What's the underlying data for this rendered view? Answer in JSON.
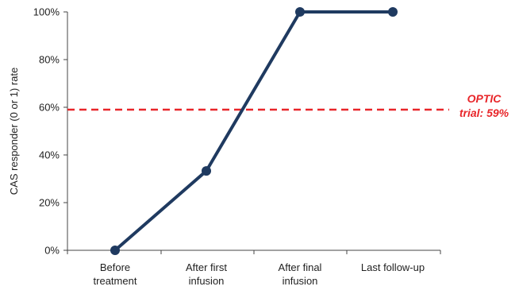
{
  "chart_data": {
    "type": "line",
    "categories": [
      [
        "Before",
        "treatment"
      ],
      [
        "After first",
        "infusion"
      ],
      [
        "After final",
        "infusion"
      ],
      [
        "Last follow-up"
      ]
    ],
    "series": [
      {
        "values": [
          0,
          33.3,
          100,
          100
        ],
        "color": "#1f3a60"
      }
    ],
    "ylabel": "CAS responder (0 or 1) rate",
    "ylim": [
      0,
      100
    ],
    "yticks": [
      0,
      20,
      40,
      60,
      80,
      100
    ],
    "ytick_labels": [
      "0%",
      "20%",
      "40%",
      "60%",
      "80%",
      "100%"
    ],
    "grid": false,
    "reference_line": {
      "value": 59,
      "label_lines": [
        "OPTIC",
        "trial: 59%"
      ],
      "color": "#e8262a",
      "style": "dashed"
    }
  }
}
